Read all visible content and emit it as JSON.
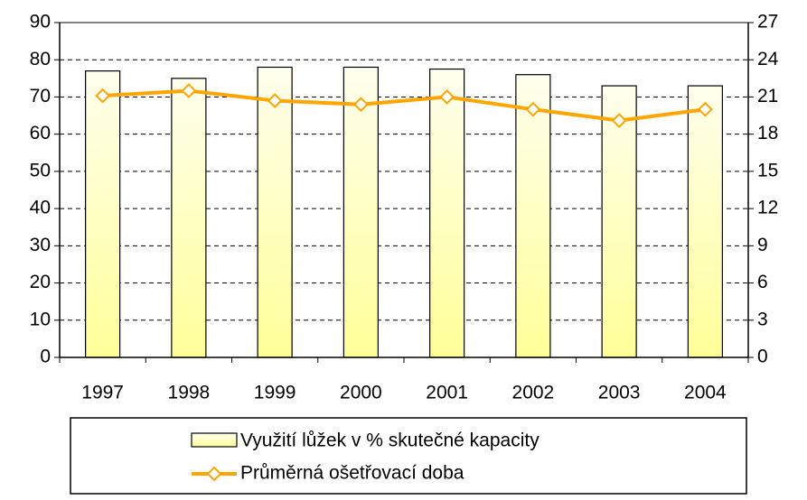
{
  "chart_data": {
    "type": "bar_line",
    "categories": [
      "1997",
      "1998",
      "1999",
      "2000",
      "2001",
      "2002",
      "2003",
      "2004"
    ],
    "series": [
      {
        "name": "Využití lůžek v % skutečné kapacity",
        "type": "bar",
        "color": "#ffff99",
        "values": [
          77,
          75,
          78,
          78,
          77.5,
          76,
          73,
          73
        ]
      },
      {
        "name": "Průměrná ošetřovací doba",
        "type": "line",
        "axis": "y2",
        "color": "#ffa500",
        "values": [
          21.1,
          21.5,
          20.7,
          20.4,
          21.0,
          20.0,
          19.1,
          20.0
        ]
      }
    ],
    "ylim": [
      0,
      90
    ],
    "yticks": [
      0,
      10,
      20,
      30,
      40,
      50,
      60,
      70,
      80,
      90
    ],
    "y2lim": [
      0,
      27
    ],
    "y2ticks": [
      0,
      3,
      6,
      9,
      12,
      15,
      18,
      21,
      24,
      27
    ],
    "grid": true,
    "legend": "bottom"
  }
}
